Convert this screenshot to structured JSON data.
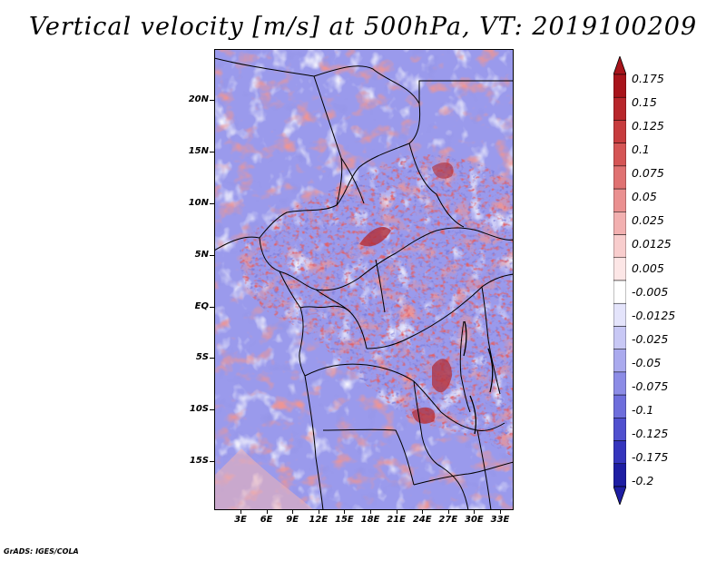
{
  "title": "Vertical velocity [m/s] at 500hPa, VT: 2019100209",
  "credit": "GrADS: IGES/COLA",
  "latitude_labels": [
    "20N",
    "15N",
    "10N",
    "5N",
    "EQ",
    "5S",
    "10S",
    "15S"
  ],
  "longitude_labels": [
    "3E",
    "6E",
    "9E",
    "12E",
    "15E",
    "18E",
    "21E",
    "24E",
    "27E",
    "30E",
    "33E"
  ],
  "colorbar": {
    "levels": [
      {
        "label": "0.175",
        "color": "#a8141b"
      },
      {
        "label": "0.15",
        "color": "#b8262b"
      },
      {
        "label": "0.125",
        "color": "#c73c3e"
      },
      {
        "label": "0.1",
        "color": "#d55555"
      },
      {
        "label": "0.075",
        "color": "#e07272"
      },
      {
        "label": "0.05",
        "color": "#ea9090"
      },
      {
        "label": "0.025",
        "color": "#f2b0b0"
      },
      {
        "label": "0.0125",
        "color": "#f8cdcd"
      },
      {
        "label": "0.005",
        "color": "#fce6e6"
      },
      {
        "label": "-0.005",
        "color": "#ffffff"
      },
      {
        "label": "-0.0125",
        "color": "#e4e4fb"
      },
      {
        "label": "-0.025",
        "color": "#c8c8f5"
      },
      {
        "label": "-0.05",
        "color": "#aaaaee"
      },
      {
        "label": "-0.075",
        "color": "#8c8ce6"
      },
      {
        "label": "-0.1",
        "color": "#6e6edc"
      },
      {
        "label": "-0.125",
        "color": "#5050cf"
      },
      {
        "label": "-0.175",
        "color": "#3535bd"
      },
      {
        "label": "-0.2",
        "color": "#1e1ea3"
      }
    ],
    "over_color": "#a8141b",
    "under_color": "#1e1ea3"
  }
}
